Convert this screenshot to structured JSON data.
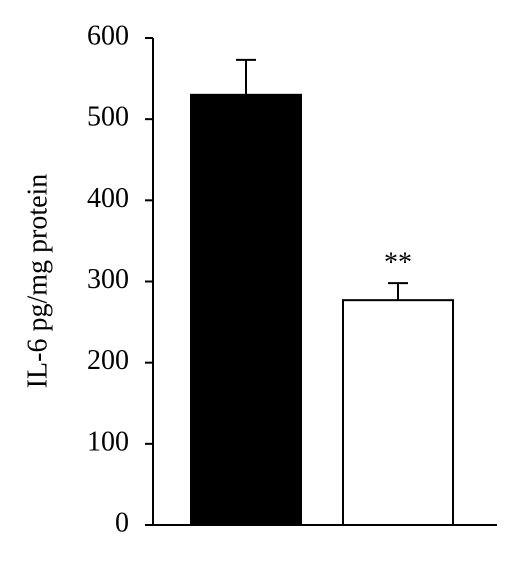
{
  "chart_data": {
    "type": "bar",
    "y_label": "IL-6 pg/mg protein",
    "values": [
      530,
      277
    ],
    "errors": [
      43,
      21
    ],
    "colors": [
      "#000000",
      "#ffffff"
    ],
    "annotation": "**",
    "ylim": [
      0,
      600
    ],
    "yticks": [
      0,
      100,
      200,
      300,
      400,
      500,
      600
    ],
    "grid": false
  }
}
